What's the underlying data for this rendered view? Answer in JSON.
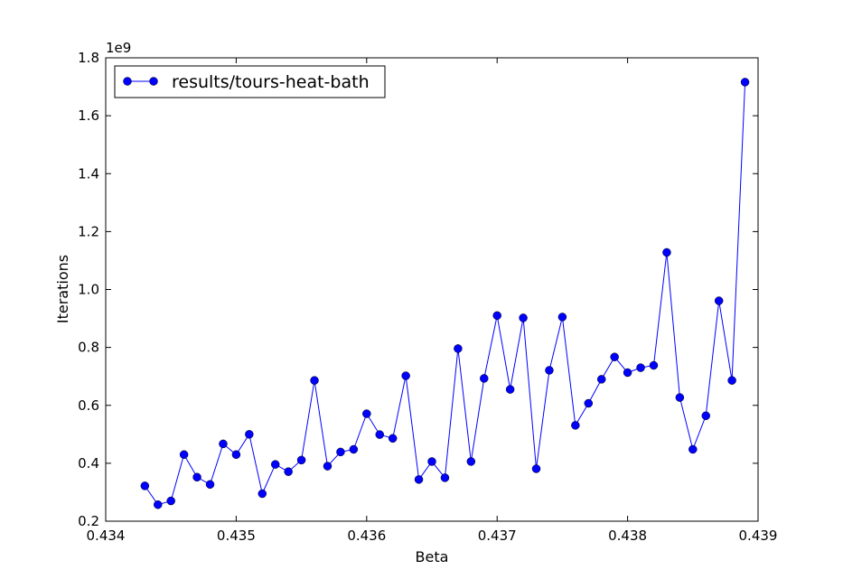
{
  "chart_data": {
    "type": "line",
    "xlabel": "Beta",
    "ylabel": "Iterations",
    "offset_label": "1e9",
    "xlim": [
      0.434,
      0.439
    ],
    "ylim": [
      0.2,
      1.8
    ],
    "xticks": [
      "0.434",
      "0.435",
      "0.436",
      "0.437",
      "0.438",
      "0.439"
    ],
    "yticks": [
      "0.2",
      "0.4",
      "0.6",
      "0.8",
      "1.0",
      "1.2",
      "1.4",
      "1.6",
      "1.8"
    ],
    "xtick_values": [
      0.434,
      0.435,
      0.436,
      0.437,
      0.438,
      0.439
    ],
    "ytick_values": [
      0.2,
      0.4,
      0.6,
      0.8,
      1.0,
      1.2,
      1.4,
      1.6,
      1.8
    ],
    "legend_position": "top-left",
    "grid": false,
    "series": [
      {
        "name": "results/tours-heat-bath",
        "color": "#0000ff",
        "marker": "circle",
        "x": [
          0.4343,
          0.4344,
          0.4345,
          0.4346,
          0.4347,
          0.4348,
          0.4349,
          0.435,
          0.4351,
          0.4352,
          0.4353,
          0.4354,
          0.4355,
          0.4356,
          0.4357,
          0.4358,
          0.4359,
          0.436,
          0.4361,
          0.4362,
          0.4363,
          0.4364,
          0.4365,
          0.4366,
          0.4367,
          0.4368,
          0.4369,
          0.437,
          0.4371,
          0.4372,
          0.4373,
          0.4374,
          0.4375,
          0.4376,
          0.4377,
          0.4378,
          0.4379,
          0.438,
          0.4381,
          0.4382,
          0.4383,
          0.4384,
          0.4385,
          0.4386,
          0.4387,
          0.4388,
          0.4389
        ],
        "y": [
          0.322,
          0.257,
          0.27,
          0.43,
          0.352,
          0.327,
          0.467,
          0.43,
          0.5,
          0.295,
          0.396,
          0.371,
          0.411,
          0.686,
          0.39,
          0.439,
          0.448,
          0.571,
          0.499,
          0.486,
          0.702,
          0.344,
          0.406,
          0.35,
          0.796,
          0.406,
          0.693,
          0.91,
          0.655,
          0.902,
          0.381,
          0.721,
          0.905,
          0.531,
          0.607,
          0.69,
          0.767,
          0.713,
          0.73,
          0.738,
          1.128,
          0.627,
          0.448,
          0.564,
          0.961,
          0.686,
          1.716
        ]
      }
    ]
  }
}
